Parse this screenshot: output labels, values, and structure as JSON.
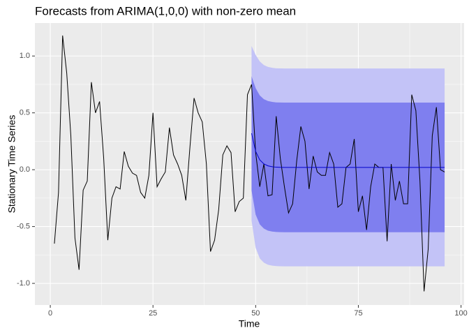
{
  "chart_data": {
    "type": "line",
    "title": "Forecasts from ARIMA(1,0,0) with non-zero mean",
    "x_label": "Time",
    "y_label": "Stationary Time Series",
    "xlim": [
      -3.75,
      100.75
    ],
    "ylim": [
      -1.19,
      1.29
    ],
    "xticks": [
      0,
      25,
      50,
      75,
      100
    ],
    "yticks": [
      {
        "value": -1,
        "label": "-1.0"
      },
      -0.5,
      {
        "value": 0,
        "label": "0.0"
      },
      0.5,
      {
        "value": 1,
        "label": "1.0"
      }
    ],
    "grid": true,
    "color": "#000000",
    "x": [
      1,
      2,
      3,
      4,
      5,
      6,
      7,
      8,
      9,
      10,
      11,
      12,
      13,
      14,
      15,
      16,
      17,
      18,
      19,
      20,
      21,
      22,
      23,
      24,
      25,
      26,
      27,
      28,
      29,
      30,
      31,
      32,
      33,
      34,
      35,
      36,
      37,
      38,
      39,
      40,
      41,
      42,
      43,
      44,
      45,
      46,
      47,
      48,
      49,
      50,
      51,
      52,
      53,
      54,
      55,
      56,
      57,
      58,
      59,
      60,
      61,
      62,
      63,
      64,
      65,
      66,
      67,
      68,
      69,
      70,
      71,
      72,
      73,
      74,
      75,
      76,
      77,
      78,
      79,
      80,
      81,
      82,
      83,
      84,
      85,
      86,
      87,
      88,
      89,
      90,
      91,
      92,
      93,
      94,
      95,
      96
    ],
    "values": [
      -0.65,
      -0.2,
      1.18,
      0.85,
      0.3,
      -0.6,
      -0.88,
      -0.18,
      -0.1,
      0.77,
      0.5,
      0.6,
      0.1,
      -0.62,
      -0.25,
      -0.15,
      -0.17,
      0.16,
      0.03,
      -0.03,
      -0.05,
      -0.2,
      -0.25,
      -0.05,
      0.5,
      -0.15,
      -0.08,
      -0.02,
      0.37,
      0.13,
      0.05,
      -0.05,
      -0.27,
      0.2,
      0.63,
      0.5,
      0.42,
      0.05,
      -0.72,
      -0.62,
      -0.35,
      0.13,
      0.21,
      0.15,
      -0.37,
      -0.28,
      -0.25,
      0.66,
      0.75,
      0.15,
      -0.15,
      0.05,
      -0.23,
      -0.22,
      0.47,
      0.1,
      -0.15,
      -0.38,
      -0.3,
      0.08,
      0.38,
      0.25,
      -0.17,
      0.12,
      -0.02,
      -0.05,
      -0.05,
      0.15,
      0.05,
      -0.33,
      -0.3,
      0.02,
      0.05,
      0.27,
      -0.37,
      -0.23,
      -0.53,
      -0.15,
      0.05,
      0.02,
      0.02,
      -0.63,
      0.05,
      -0.27,
      -0.1,
      -0.3,
      -0.3,
      0.66,
      0.52,
      -0.1,
      -1.07,
      -0.7,
      0.3,
      0.55,
      0.0,
      -0.02
    ],
    "forecast": {
      "color": "#0000cc",
      "band80_color": "#7f7fef",
      "band95_color": "#c3c3f7",
      "x": [
        49,
        50,
        51,
        52,
        53,
        54,
        55,
        56,
        57,
        58,
        59,
        60,
        61,
        62,
        63,
        64,
        65,
        66,
        67,
        68,
        69,
        70,
        71,
        72,
        73,
        74,
        75,
        76,
        77,
        78,
        79,
        80,
        81,
        82,
        83,
        84,
        85,
        86,
        87,
        88,
        89,
        90,
        91,
        92,
        93,
        94,
        95,
        96
      ],
      "mean": [
        0.32,
        0.161,
        0.086,
        0.051,
        0.034,
        0.026,
        0.022,
        0.021,
        0.02,
        0.02,
        0.02,
        0.02,
        0.02,
        0.02,
        0.02,
        0.02,
        0.02,
        0.02,
        0.02,
        0.02,
        0.02,
        0.02,
        0.02,
        0.02,
        0.02,
        0.02,
        0.02,
        0.02,
        0.02,
        0.02,
        0.02,
        0.02,
        0.02,
        0.02,
        0.02,
        0.02,
        0.02,
        0.02,
        0.02,
        0.02,
        0.02,
        0.02,
        0.02,
        0.02,
        0.02,
        0.02,
        0.02,
        0.02
      ],
      "hi80": [
        0.823,
        0.717,
        0.653,
        0.62,
        0.604,
        0.596,
        0.592,
        0.591,
        0.59,
        0.59,
        0.59,
        0.59,
        0.59,
        0.59,
        0.59,
        0.59,
        0.59,
        0.59,
        0.59,
        0.59,
        0.59,
        0.59,
        0.59,
        0.59,
        0.59,
        0.59,
        0.59,
        0.59,
        0.59,
        0.59,
        0.59,
        0.59,
        0.59,
        0.59,
        0.59,
        0.59,
        0.59,
        0.59,
        0.59,
        0.59,
        0.59,
        0.59,
        0.59,
        0.59,
        0.59,
        0.59,
        0.59,
        0.59
      ],
      "lo80": [
        -0.183,
        -0.395,
        -0.481,
        -0.518,
        -0.536,
        -0.544,
        -0.548,
        -0.549,
        -0.55,
        -0.55,
        -0.55,
        -0.55,
        -0.55,
        -0.55,
        -0.55,
        -0.55,
        -0.55,
        -0.55,
        -0.55,
        -0.55,
        -0.55,
        -0.55,
        -0.55,
        -0.55,
        -0.55,
        -0.55,
        -0.55,
        -0.55,
        -0.55,
        -0.55,
        -0.55,
        -0.55,
        -0.55,
        -0.55,
        -0.55,
        -0.55,
        -0.55,
        -0.55,
        -0.55,
        -0.55,
        -0.55,
        -0.55,
        -0.55,
        -0.55,
        -0.55,
        -0.55,
        -0.55,
        -0.55
      ],
      "hi95": [
        1.088,
        1.01,
        0.952,
        0.92,
        0.904,
        0.896,
        0.892,
        0.891,
        0.89,
        0.89,
        0.89,
        0.89,
        0.89,
        0.89,
        0.89,
        0.89,
        0.89,
        0.89,
        0.89,
        0.89,
        0.89,
        0.89,
        0.89,
        0.89,
        0.89,
        0.89,
        0.89,
        0.89,
        0.89,
        0.89,
        0.89,
        0.89,
        0.89,
        0.89,
        0.89,
        0.89,
        0.89,
        0.89,
        0.89,
        0.89,
        0.89,
        0.89,
        0.89,
        0.89,
        0.89,
        0.89,
        0.89,
        0.89
      ],
      "lo95": [
        -0.448,
        -0.688,
        -0.78,
        -0.818,
        -0.836,
        -0.844,
        -0.848,
        -0.849,
        -0.85,
        -0.85,
        -0.85,
        -0.85,
        -0.85,
        -0.85,
        -0.85,
        -0.85,
        -0.85,
        -0.85,
        -0.85,
        -0.85,
        -0.85,
        -0.85,
        -0.85,
        -0.85,
        -0.85,
        -0.85,
        -0.85,
        -0.85,
        -0.85,
        -0.85,
        -0.85,
        -0.85,
        -0.85,
        -0.85,
        -0.85,
        -0.85,
        -0.85,
        -0.85,
        -0.85,
        -0.85,
        -0.85,
        -0.85,
        -0.85,
        -0.85,
        -0.85,
        -0.85,
        -0.85,
        -0.85
      ]
    }
  }
}
